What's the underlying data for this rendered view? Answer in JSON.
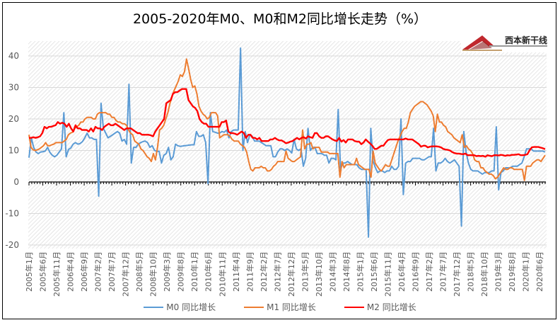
{
  "title": "2005-2020年M0、M0和M2同比增长走势（%）",
  "logo": {
    "text": "西本新干线"
  },
  "colors": {
    "m0": "#5B9BD5",
    "m1": "#ED7D31",
    "m2": "#FF0000",
    "grid": "#D9D9D9",
    "axis": "#000000"
  },
  "chart_data": {
    "type": "line",
    "title": "2005-2020年M0、M0和M2同比增长走势（%）",
    "xlabel": "",
    "ylabel": "",
    "ylim": [
      -20,
      45
    ],
    "yticks": [
      -20,
      -10,
      0,
      10,
      20,
      30,
      40
    ],
    "grid": true,
    "legend_position": "bottom",
    "x_start": "2005-01",
    "x_end": "2020-08",
    "x_tick_labels": [
      "2005年1月",
      "2005年6月",
      "2005年11月",
      "2006年4月",
      "2006年9月",
      "2007年2月",
      "2007年7月",
      "2007年12月",
      "2008年5月",
      "2008年10月",
      "2009年3月",
      "2009年8月",
      "2010年1月",
      "2010年6月",
      "2010年11月",
      "2011年4月",
      "2011年9月",
      "2012年2月",
      "2012年7月",
      "2012年12月",
      "2013年5月",
      "2013年10月",
      "2014年3月",
      "2014年8月",
      "2015年1月",
      "2015年6月",
      "2015年11月",
      "2016年4月",
      "2016年9月",
      "2017年2月",
      "2017年7月",
      "2017年12月",
      "2018年5月",
      "2018年10月",
      "2019年3月",
      "2019年8月",
      "2020年1月",
      "2020年6月"
    ],
    "series": [
      {
        "name": "M0 同比增长",
        "values": [
          7.7,
          14,
          11,
          9.5,
          9,
          9.5,
          9.6,
          9.8,
          11,
          9.4,
          8.5,
          8,
          8.5,
          9.5,
          10.5,
          22,
          8,
          10.3,
          10.8,
          12,
          12.5,
          12,
          12.2,
          12.8,
          14,
          15.5,
          14,
          14,
          13.5,
          13.5,
          -4.5,
          25,
          17,
          15.5,
          14,
          14.5,
          15,
          15.5,
          16,
          15.5,
          13,
          13.5,
          12,
          31,
          6,
          11,
          11,
          12,
          12.5,
          12.8,
          13,
          12.5,
          11,
          11.5,
          10,
          9.7,
          9.7,
          6,
          8.5,
          9,
          11,
          7,
          8,
          12,
          11.5,
          11.3,
          11.4,
          11.5,
          11.6,
          11.7,
          11.8,
          11.8,
          16,
          14.5,
          14.5,
          15,
          12.5,
          -0.5,
          22,
          16,
          15.8,
          15.5,
          15.5,
          16,
          15.8,
          16.5,
          14,
          16,
          16.5,
          16.5,
          16.5,
          42.5,
          10,
          16,
          12.5,
          15,
          14.5,
          13,
          13,
          13,
          12.5,
          12,
          11.5,
          11.5,
          11.5,
          8,
          8,
          9.5,
          10.5,
          10.5,
          10,
          10.5,
          10,
          9.2,
          13.5,
          10.5,
          10,
          10.5,
          5,
          7.5,
          17,
          10,
          11,
          11,
          9,
          9,
          9,
          8.5,
          8.5,
          6,
          7.5,
          7.5,
          7,
          23,
          4,
          6,
          6,
          6.5,
          6,
          5.5,
          5.5,
          5.5,
          4.5,
          4,
          4,
          4,
          -17.5,
          17,
          6.5,
          4.5,
          3,
          3.5,
          3.5,
          3,
          3.5,
          3.5,
          5,
          4,
          4,
          5,
          20,
          -4,
          6,
          6.5,
          6.5,
          7.5,
          7.5,
          7.5,
          7.5,
          7,
          7,
          7.5,
          8,
          8,
          17,
          3.5,
          6,
          6,
          6.5,
          7.5,
          6.5,
          6,
          6.5,
          7,
          6,
          5,
          -14,
          16,
          9.5,
          6,
          4,
          3.5,
          3.5,
          3.5,
          3,
          2.5,
          3,
          3,
          3,
          3.5,
          3.5,
          17.5,
          -2.5,
          3,
          3.5,
          4.5,
          4.5,
          4.5,
          5,
          5,
          5,
          5.5,
          6,
          8,
          10.5,
          10.5,
          10.5,
          9.8,
          9.8,
          9.8,
          9.8,
          9.8,
          9.5
        ]
      },
      {
        "name": "M1 同比增长",
        "values": [
          15,
          11,
          10.2,
          10,
          10.2,
          10.5,
          11,
          11.5,
          12.5,
          11.5,
          11.5,
          11.8,
          12,
          12.5,
          12.5,
          12.5,
          12.5,
          13,
          13.5,
          15,
          15.5,
          15.8,
          17,
          17.5,
          18,
          19,
          19,
          20,
          20.5,
          20.5,
          20.5,
          20,
          20,
          21.5,
          22,
          22,
          22,
          22,
          21.5,
          21.5,
          20.5,
          20.5,
          19.5,
          19,
          19,
          18.5,
          18.5,
          18,
          16.5,
          15.5,
          15,
          13,
          12.5,
          12,
          10.5,
          10,
          9,
          8,
          7.5,
          6.5,
          9,
          7,
          11,
          16.5,
          17,
          18,
          20,
          22,
          25,
          27,
          29,
          30.5,
          32,
          34,
          33.5,
          35,
          39,
          36,
          32.5,
          30,
          30.5,
          28,
          24,
          22.5,
          21.5,
          21,
          20,
          20.5,
          22,
          22,
          22,
          21,
          14,
          14.5,
          15,
          15,
          15,
          14.5,
          13.5,
          13,
          13,
          13,
          12,
          11.5,
          11,
          9.5,
          6.5,
          4,
          3.5,
          4.5,
          4.5,
          4.5,
          5,
          4.5,
          4.5,
          3.5,
          3.5,
          4,
          5,
          5.5,
          6.5,
          6.5,
          6.5,
          6.5,
          9.8,
          7.5,
          7,
          6.5,
          6.5,
          7,
          7.5,
          8,
          16.5,
          10.5,
          12,
          12,
          12.5,
          10.5,
          11,
          11,
          11,
          9.5,
          9.5,
          9.5,
          9.5,
          9,
          9,
          9,
          9,
          9,
          1.5,
          6.5,
          4.5,
          5.5,
          5.5,
          5.5,
          5.5,
          5.5,
          7.5,
          5.5,
          5,
          4.5,
          4,
          4,
          4,
          1.5,
          9.8,
          6,
          5,
          4,
          3.5,
          4.5,
          5.5,
          5,
          5,
          7,
          9,
          11,
          13,
          14.5,
          16,
          17,
          17,
          19,
          22,
          23,
          24,
          24.5,
          25,
          25.5,
          25.5,
          25,
          24.5,
          23.5,
          22.5,
          21,
          16,
          21.5,
          19,
          19,
          18,
          17.5,
          16,
          15.5,
          15,
          14,
          13.5,
          13,
          12.5,
          15,
          11,
          11.5,
          10.5,
          10,
          9,
          7,
          6.5,
          6.5,
          4.5,
          4.5,
          3.5,
          3,
          2.5,
          2.5,
          2,
          1,
          1.5,
          2.5,
          3.5,
          4.5,
          4,
          4,
          4.5,
          4.5,
          4,
          4,
          4,
          4,
          4,
          0.5,
          5,
          5,
          5,
          6,
          6.5,
          7,
          7,
          6.5,
          7.5,
          8.5
        ]
      },
      {
        "name": "M2 同比增长",
        "values": [
          14,
          14,
          14.2,
          14,
          14.2,
          14.5,
          15.5,
          17.5,
          17,
          17.5,
          17.5,
          17.8,
          18,
          19,
          18.5,
          18.8,
          18.5,
          17.5,
          18.5,
          17,
          16,
          18,
          17,
          17,
          16.5,
          16.5,
          16.5,
          16,
          17,
          16,
          17.5,
          17,
          17,
          16.5,
          17.5,
          18,
          18.5,
          18,
          18,
          18.5,
          18,
          17.5,
          17,
          16.5,
          17,
          17,
          17,
          16.5,
          16,
          15.5,
          15.5,
          15,
          15,
          15,
          15,
          14.8,
          14.5,
          16,
          17,
          18,
          19,
          20,
          25,
          25.5,
          26,
          28,
          28.5,
          28.5,
          29,
          29.5,
          29.5,
          29.5,
          26,
          25,
          24,
          23.5,
          22.5,
          20,
          19,
          18.5,
          18.5,
          17.5,
          17.5,
          17.5,
          17.5,
          17.5,
          17.5,
          19,
          19,
          19.5,
          16,
          15.5,
          15.5,
          15.3,
          15,
          15.5,
          16,
          15.5,
          14,
          15,
          15,
          14,
          14,
          13.5,
          14,
          13,
          13,
          13,
          13,
          13.5,
          13.5,
          14,
          13.5,
          13.2,
          13.2,
          12.8,
          12.3,
          12.5,
          12.8,
          13,
          13.5,
          14,
          13.5,
          14,
          14.2,
          13.8,
          14.5,
          14.2,
          14,
          15.5,
          15.5,
          14.5,
          14,
          14,
          14.5,
          14.5,
          14,
          13.5,
          13.2,
          13,
          14,
          12.8,
          13.3,
          12.5,
          13.5,
          13.5,
          13.5,
          13,
          12.8,
          12.8,
          12,
          12.5,
          13.5,
          12.8,
          12.2,
          11.5,
          10.5,
          10.5,
          11,
          11.5,
          11.5,
          12.5,
          13.3,
          13.5,
          13.5,
          13.5,
          13.5,
          13.5,
          13.5,
          13.5,
          13.8,
          13.5,
          13.5,
          13.5,
          13,
          12.5,
          12,
          11.2,
          11.5,
          11.5,
          11,
          11.2,
          11.3,
          11.3,
          11.3,
          11.2,
          11,
          10.5,
          10.3,
          10.2,
          10.0,
          9.5,
          9.2,
          9,
          9,
          8.9,
          8.8,
          9,
          8.5,
          8.5,
          8.5,
          8.5,
          8.2,
          8.3,
          8.2,
          8.3,
          8,
          8.5,
          8.3,
          8.2,
          8.5,
          8.5,
          8.4,
          8.6,
          8.5,
          8.3,
          8.5,
          8.4,
          8.6,
          8.6,
          8.7,
          8.8,
          8.5,
          8.5,
          8.6,
          8.8,
          10.1,
          11,
          11.1,
          11.1,
          11.1,
          10.9,
          10.7,
          10.4
        ]
      }
    ]
  }
}
